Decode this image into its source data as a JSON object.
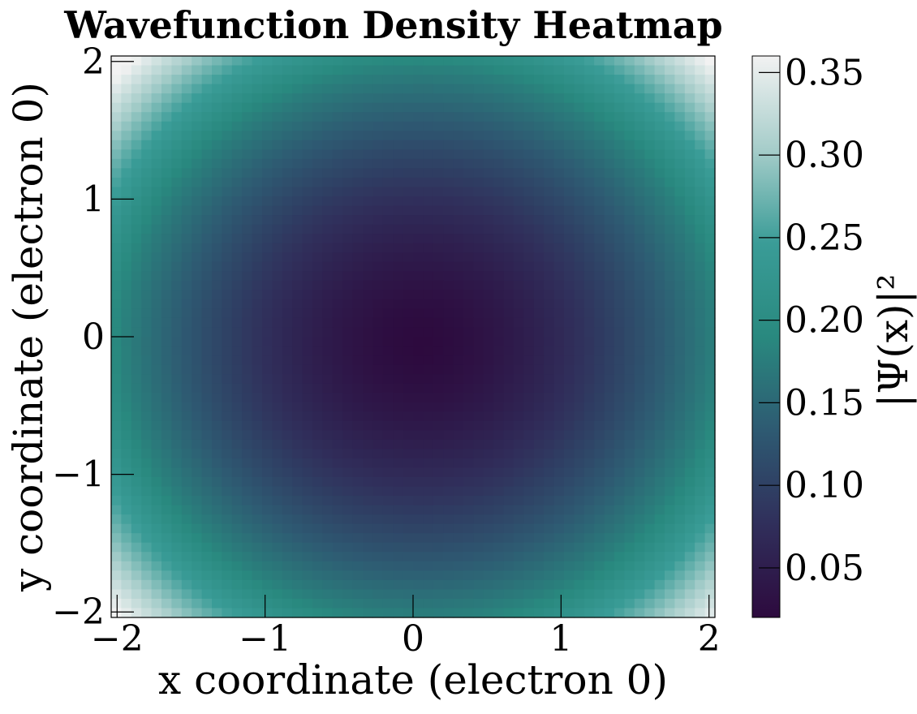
{
  "chart_data": {
    "type": "heatmap",
    "title": "Wavefunction Density Heatmap",
    "xlabel": "x coordinate (electron 0)",
    "ylabel": "y coordinate (electron 0)",
    "xlim": [
      -2.04,
      2.04
    ],
    "ylim": [
      -2.04,
      2.04
    ],
    "x_ticks": [
      -2,
      -1,
      0,
      1,
      2
    ],
    "y_ticks": [
      -2,
      -1,
      0,
      1,
      2
    ],
    "x_tick_labels": [
      "−2",
      "−1",
      "0",
      "1",
      "2"
    ],
    "y_tick_labels": [
      "−2",
      "−1",
      "0",
      "1",
      "2"
    ],
    "grid": false,
    "grid_size": 60,
    "density_model": {
      "center": [
        0.05,
        -0.05
      ],
      "min_value": 0.02,
      "corner_value": 0.36,
      "edge_midpoint_value": 0.18
    },
    "colorbar": {
      "label": "|Ψ(x)|²",
      "range": [
        0.02,
        0.36
      ],
      "ticks": [
        0.05,
        0.1,
        0.15,
        0.2,
        0.25,
        0.3,
        0.35
      ],
      "tick_labels": [
        "0.05",
        "0.10",
        "0.15",
        "0.20",
        "0.25",
        "0.30",
        "0.35"
      ],
      "colormap": [
        "#2d0a3e",
        "#302f5b",
        "#2e5a72",
        "#29897f",
        "#3a9c97",
        "#a6cdca",
        "#f2f2f2"
      ]
    }
  }
}
